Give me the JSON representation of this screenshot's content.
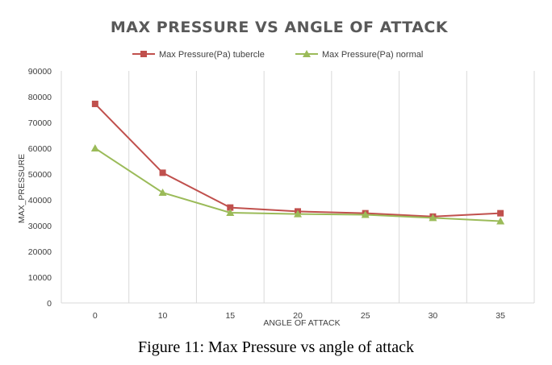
{
  "caption": "Figure 11: Max Pressure vs angle of attack",
  "chart_data": {
    "type": "line",
    "title": "MAX PRESSURE VS ANGLE OF ATTACK",
    "xlabel": "ANGLE OF ATTACK",
    "ylabel": "MAX_PRESSURE",
    "categories": [
      "0",
      "10",
      "15",
      "20",
      "25",
      "30",
      "35"
    ],
    "y_ticks": [
      "0",
      "10000",
      "20000",
      "30000",
      "40000",
      "50000",
      "60000",
      "70000",
      "80000",
      "90000"
    ],
    "ylim": [
      0,
      90000
    ],
    "grid": "vertical",
    "legend_position": "top",
    "series": [
      {
        "name": "Max Pressure(Pa) tubercle",
        "values": [
          77200,
          50500,
          37000,
          35500,
          34800,
          33500,
          34800
        ],
        "color": "#c0504d",
        "marker": "square"
      },
      {
        "name": "Max Pressure(Pa) normal",
        "values": [
          60000,
          42800,
          35000,
          34500,
          34200,
          33000,
          31700
        ],
        "color": "#9bbb59",
        "marker": "triangle"
      }
    ]
  }
}
